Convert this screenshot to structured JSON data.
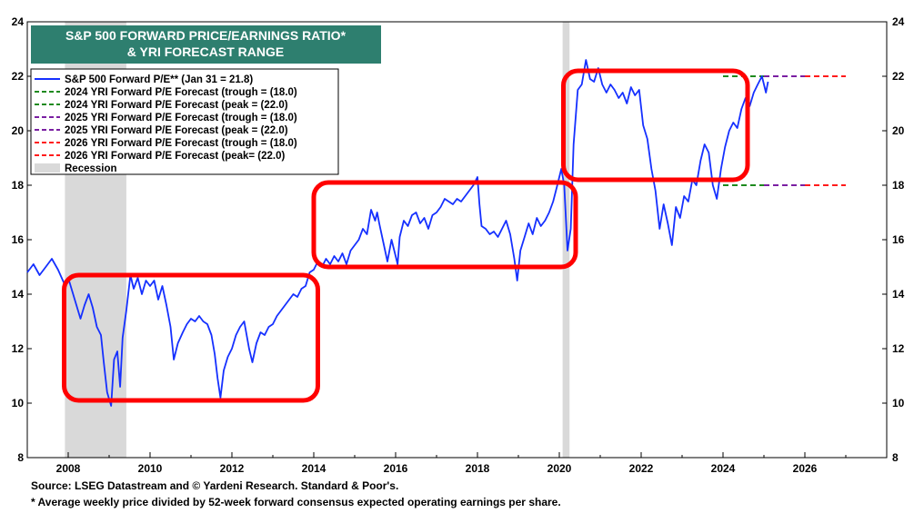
{
  "chart_data": {
    "type": "line",
    "title_lines": [
      "S&P 500 FORWARD PRICE/EARNINGS RATIO*",
      "& YRI FORECAST RANGE"
    ],
    "xlim": [
      2007.0,
      2028.0
    ],
    "ylim": [
      8,
      24
    ],
    "x_ticks": [
      2008,
      2010,
      2012,
      2014,
      2016,
      2018,
      2020,
      2022,
      2024,
      2026
    ],
    "y_ticks": [
      8,
      10,
      12,
      14,
      16,
      18,
      20,
      22,
      24
    ],
    "grid": false,
    "legend_placement": "top-left",
    "colors": {
      "title_bg": "#2e7f6f",
      "series": "#1530ff",
      "green": "#1e8a1e",
      "purple": "#7a1fa2",
      "red": "#ff1a1a",
      "recession": "#d9d9d9",
      "highlight_box": "#ff0000"
    },
    "legend": [
      {
        "label": "S&P 500 Forward P/E** (Jan 31 = 21.8)",
        "style": "solid",
        "color": "#1530ff"
      },
      {
        "label": "2024 YRI Forward P/E Forecast (trough = (18.0)",
        "style": "dashed",
        "color": "#1e8a1e"
      },
      {
        "label": "2024 YRI Forward P/E Forecast (peak = (22.0)",
        "style": "dashed",
        "color": "#1e8a1e"
      },
      {
        "label": "2025 YRI Forward P/E Forecast (trough = (18.0)",
        "style": "dashed",
        "color": "#7a1fa2"
      },
      {
        "label": "2025 YRI Forward P/E Forecast (peak = (22.0)",
        "style": "dashed",
        "color": "#7a1fa2"
      },
      {
        "label": "2026 YRI Forward P/E Forecast (trough = (18.0)",
        "style": "dashed",
        "color": "#ff1a1a"
      },
      {
        "label": "2026 YRI Forward P/E Forecast (peak= (22.0)",
        "style": "dashed",
        "color": "#ff1a1a"
      },
      {
        "label": "Recession",
        "style": "box",
        "color": "#d9d9d9"
      }
    ],
    "recessions": [
      [
        2007.92,
        2009.42
      ],
      [
        2020.08,
        2020.25
      ]
    ],
    "forecasts": [
      {
        "year": 2024,
        "x": [
          2024.0,
          2025.0
        ],
        "trough": 18.0,
        "peak": 22.0,
        "color": "#1e8a1e"
      },
      {
        "year": 2025,
        "x": [
          2025.0,
          2026.0
        ],
        "trough": 18.0,
        "peak": 22.0,
        "color": "#7a1fa2"
      },
      {
        "year": 2026,
        "x": [
          2026.0,
          2027.0
        ],
        "trough": 18.0,
        "peak": 22.0,
        "color": "#ff1a1a"
      }
    ],
    "highlight_boxes": [
      {
        "x": [
          2007.9,
          2014.1
        ],
        "y": [
          10.1,
          14.7
        ]
      },
      {
        "x": [
          2014.0,
          2020.4
        ],
        "y": [
          15.0,
          18.1
        ]
      },
      {
        "x": [
          2020.1,
          2024.6
        ],
        "y": [
          18.2,
          22.2
        ]
      }
    ],
    "series": [
      {
        "name": "S&P 500 Forward P/E** (Jan 31 = 21.8)",
        "points": [
          [
            2007.0,
            14.8
          ],
          [
            2007.15,
            15.1
          ],
          [
            2007.3,
            14.7
          ],
          [
            2007.45,
            15.0
          ],
          [
            2007.6,
            15.3
          ],
          [
            2007.75,
            14.9
          ],
          [
            2007.9,
            14.4
          ],
          [
            2008.0,
            14.6
          ],
          [
            2008.1,
            14.1
          ],
          [
            2008.2,
            13.6
          ],
          [
            2008.3,
            13.1
          ],
          [
            2008.4,
            13.6
          ],
          [
            2008.5,
            14.0
          ],
          [
            2008.6,
            13.5
          ],
          [
            2008.7,
            12.8
          ],
          [
            2008.8,
            12.5
          ],
          [
            2008.87,
            11.5
          ],
          [
            2008.95,
            10.4
          ],
          [
            2009.05,
            9.9
          ],
          [
            2009.12,
            11.6
          ],
          [
            2009.2,
            11.9
          ],
          [
            2009.27,
            10.6
          ],
          [
            2009.33,
            12.4
          ],
          [
            2009.42,
            13.4
          ],
          [
            2009.52,
            14.7
          ],
          [
            2009.6,
            14.2
          ],
          [
            2009.7,
            14.6
          ],
          [
            2009.8,
            14.0
          ],
          [
            2009.9,
            14.5
          ],
          [
            2010.0,
            14.3
          ],
          [
            2010.1,
            14.5
          ],
          [
            2010.2,
            13.8
          ],
          [
            2010.3,
            14.3
          ],
          [
            2010.4,
            13.6
          ],
          [
            2010.5,
            12.8
          ],
          [
            2010.58,
            11.6
          ],
          [
            2010.68,
            12.2
          ],
          [
            2010.8,
            12.6
          ],
          [
            2010.9,
            12.9
          ],
          [
            2011.0,
            13.1
          ],
          [
            2011.1,
            13.0
          ],
          [
            2011.2,
            13.2
          ],
          [
            2011.3,
            13.0
          ],
          [
            2011.4,
            12.9
          ],
          [
            2011.5,
            12.5
          ],
          [
            2011.58,
            11.8
          ],
          [
            2011.65,
            10.9
          ],
          [
            2011.72,
            10.2
          ],
          [
            2011.8,
            11.2
          ],
          [
            2011.9,
            11.7
          ],
          [
            2012.0,
            12.0
          ],
          [
            2012.1,
            12.5
          ],
          [
            2012.2,
            12.8
          ],
          [
            2012.3,
            13.0
          ],
          [
            2012.42,
            12.0
          ],
          [
            2012.5,
            11.5
          ],
          [
            2012.6,
            12.2
          ],
          [
            2012.7,
            12.6
          ],
          [
            2012.8,
            12.5
          ],
          [
            2012.9,
            12.8
          ],
          [
            2013.0,
            12.9
          ],
          [
            2013.1,
            13.2
          ],
          [
            2013.2,
            13.4
          ],
          [
            2013.3,
            13.6
          ],
          [
            2013.4,
            13.8
          ],
          [
            2013.5,
            14.0
          ],
          [
            2013.6,
            13.9
          ],
          [
            2013.7,
            14.2
          ],
          [
            2013.8,
            14.3
          ],
          [
            2013.9,
            14.8
          ],
          [
            2014.0,
            14.9
          ],
          [
            2014.1,
            15.2
          ],
          [
            2014.2,
            15.0
          ],
          [
            2014.3,
            15.3
          ],
          [
            2014.4,
            15.1
          ],
          [
            2014.5,
            15.4
          ],
          [
            2014.6,
            15.2
          ],
          [
            2014.7,
            15.5
          ],
          [
            2014.8,
            15.1
          ],
          [
            2014.9,
            15.6
          ],
          [
            2015.0,
            15.8
          ],
          [
            2015.1,
            16.0
          ],
          [
            2015.2,
            16.4
          ],
          [
            2015.3,
            16.2
          ],
          [
            2015.4,
            17.1
          ],
          [
            2015.5,
            16.7
          ],
          [
            2015.55,
            17.0
          ],
          [
            2015.6,
            16.6
          ],
          [
            2015.7,
            15.9
          ],
          [
            2015.8,
            15.2
          ],
          [
            2015.9,
            16.0
          ],
          [
            2016.0,
            15.4
          ],
          [
            2016.05,
            15.1
          ],
          [
            2016.1,
            16.1
          ],
          [
            2016.2,
            16.7
          ],
          [
            2016.3,
            16.5
          ],
          [
            2016.4,
            16.9
          ],
          [
            2016.5,
            17.0
          ],
          [
            2016.6,
            16.6
          ],
          [
            2016.7,
            16.8
          ],
          [
            2016.8,
            16.4
          ],
          [
            2016.9,
            16.9
          ],
          [
            2017.0,
            17.0
          ],
          [
            2017.1,
            17.2
          ],
          [
            2017.2,
            17.5
          ],
          [
            2017.3,
            17.4
          ],
          [
            2017.4,
            17.3
          ],
          [
            2017.5,
            17.5
          ],
          [
            2017.6,
            17.4
          ],
          [
            2017.7,
            17.6
          ],
          [
            2017.8,
            17.8
          ],
          [
            2017.9,
            18.0
          ],
          [
            2018.0,
            18.3
          ],
          [
            2018.05,
            17.3
          ],
          [
            2018.1,
            16.5
          ],
          [
            2018.2,
            16.4
          ],
          [
            2018.3,
            16.2
          ],
          [
            2018.4,
            16.3
          ],
          [
            2018.5,
            16.1
          ],
          [
            2018.6,
            16.4
          ],
          [
            2018.7,
            16.7
          ],
          [
            2018.8,
            16.2
          ],
          [
            2018.9,
            15.3
          ],
          [
            2018.97,
            14.5
          ],
          [
            2019.05,
            15.6
          ],
          [
            2019.15,
            16.1
          ],
          [
            2019.25,
            16.6
          ],
          [
            2019.35,
            16.2
          ],
          [
            2019.45,
            16.8
          ],
          [
            2019.55,
            16.5
          ],
          [
            2019.65,
            16.7
          ],
          [
            2019.75,
            17.0
          ],
          [
            2019.85,
            17.4
          ],
          [
            2019.95,
            18.0
          ],
          [
            2020.05,
            18.6
          ],
          [
            2020.12,
            18.0
          ],
          [
            2020.2,
            15.6
          ],
          [
            2020.28,
            16.4
          ],
          [
            2020.35,
            19.5
          ],
          [
            2020.45,
            21.5
          ],
          [
            2020.55,
            21.7
          ],
          [
            2020.65,
            22.6
          ],
          [
            2020.75,
            21.9
          ],
          [
            2020.85,
            21.8
          ],
          [
            2020.95,
            22.3
          ],
          [
            2021.05,
            21.7
          ],
          [
            2021.15,
            21.4
          ],
          [
            2021.25,
            21.7
          ],
          [
            2021.35,
            21.5
          ],
          [
            2021.45,
            21.2
          ],
          [
            2021.55,
            21.4
          ],
          [
            2021.65,
            21.0
          ],
          [
            2021.75,
            21.6
          ],
          [
            2021.85,
            21.3
          ],
          [
            2021.95,
            21.5
          ],
          [
            2022.05,
            20.2
          ],
          [
            2022.15,
            19.7
          ],
          [
            2022.25,
            18.6
          ],
          [
            2022.35,
            17.8
          ],
          [
            2022.45,
            16.4
          ],
          [
            2022.55,
            17.3
          ],
          [
            2022.65,
            16.6
          ],
          [
            2022.75,
            15.8
          ],
          [
            2022.85,
            17.2
          ],
          [
            2022.95,
            16.8
          ],
          [
            2023.05,
            17.6
          ],
          [
            2023.15,
            17.4
          ],
          [
            2023.25,
            18.2
          ],
          [
            2023.35,
            18.0
          ],
          [
            2023.45,
            18.9
          ],
          [
            2023.55,
            19.5
          ],
          [
            2023.65,
            19.2
          ],
          [
            2023.75,
            18.0
          ],
          [
            2023.85,
            17.5
          ],
          [
            2023.95,
            18.6
          ],
          [
            2024.05,
            19.4
          ],
          [
            2024.15,
            20.0
          ],
          [
            2024.25,
            20.3
          ],
          [
            2024.35,
            20.1
          ],
          [
            2024.45,
            20.8
          ],
          [
            2024.55,
            21.2
          ],
          [
            2024.65,
            20.9
          ],
          [
            2024.75,
            21.4
          ],
          [
            2024.85,
            21.7
          ],
          [
            2024.95,
            22.0
          ],
          [
            2025.05,
            21.4
          ],
          [
            2025.1,
            21.8
          ]
        ]
      }
    ]
  },
  "footnotes": [
    "Source: LSEG Datastream and © Yardeni Research. Standard & Poor's.",
    "* Average weekly price divided by 52-week forward consensus expected operating earnings per share."
  ]
}
